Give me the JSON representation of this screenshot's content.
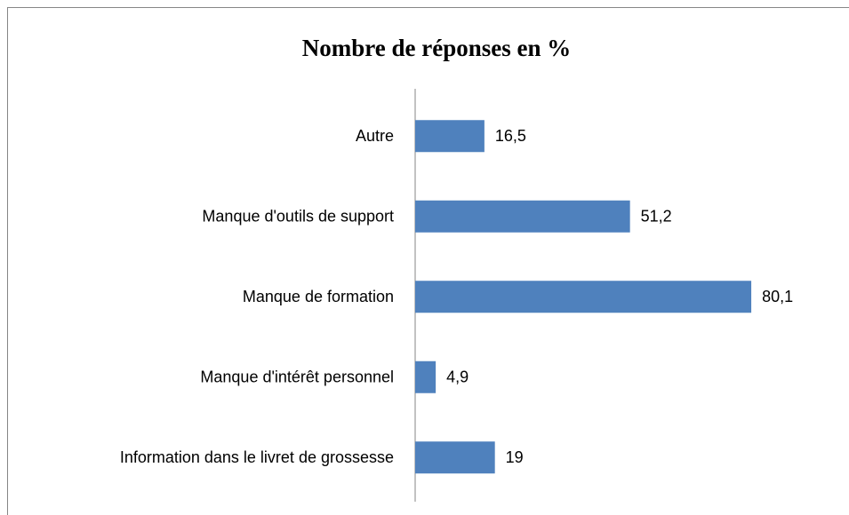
{
  "chart_data": {
    "type": "bar",
    "orientation": "horizontal",
    "title": "Nombre de réponses en %",
    "categories": [
      "Autre",
      "Manque d'outils de support",
      "Manque de formation",
      "Manque d'intérêt personnel",
      "Information dans le livret de grossesse"
    ],
    "values": [
      16.5,
      51.2,
      80.1,
      4.9,
      19
    ],
    "value_labels": [
      "16,5",
      "51,2",
      "80,1",
      "4,9",
      "19"
    ],
    "color": "#4f81bd",
    "xlim": [
      0,
      100
    ]
  }
}
